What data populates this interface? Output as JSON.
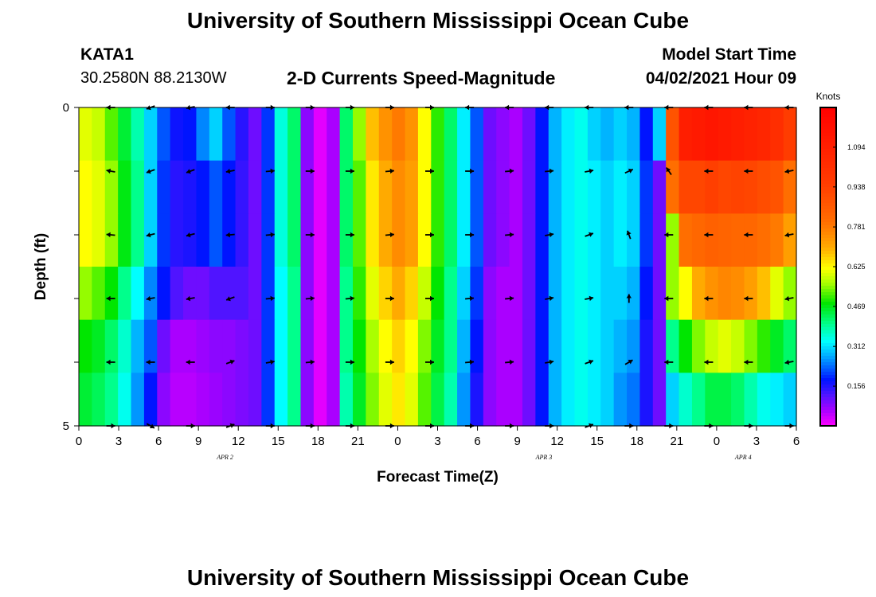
{
  "header": {
    "title": "University of Southern Mississippi Ocean Cube",
    "station": "KATA1",
    "coordinates": "30.2580N  88.2130W",
    "subtitle": "2-D Currents Speed-Magnitude",
    "model_label": "Model Start Time",
    "model_time": "04/02/2021 Hour 09"
  },
  "footer": {
    "title": "University of Southern Mississippi Ocean Cube"
  },
  "colors": {
    "background": "#ffffff",
    "arrow": "#000000",
    "frame": "#000000"
  },
  "chart_data": {
    "type": "heatmap",
    "title": "2-D Currents Speed-Magnitude",
    "xlabel": "Forecast Time(Z)",
    "ylabel": "Depth (ft)",
    "ylim": [
      0,
      5
    ],
    "y_tick_labels": [
      "0",
      "5"
    ],
    "x_tick_labels": [
      "0",
      "3",
      "6",
      "9",
      "12",
      "15",
      "18",
      "21",
      "0",
      "3",
      "6",
      "9",
      "12",
      "15",
      "18",
      "21",
      "0",
      "3",
      "6"
    ],
    "date_labels": [
      {
        "label": "APR 2",
        "hour": 11
      },
      {
        "label": "APR 3",
        "hour": 35
      },
      {
        "label": "APR 4",
        "hour": 50
      }
    ],
    "x_range_hours": [
      0,
      54
    ],
    "colorbar": {
      "unit": "Knots",
      "min": 0,
      "max": 1.25,
      "tick_values": [
        1.094,
        0.938,
        0.781,
        0.625,
        0.469,
        0.312,
        0.156
      ],
      "tick_labels": [
        "1.094",
        "0.938",
        "0.781",
        "0.625",
        "0.469",
        "0.312",
        "0.156"
      ]
    },
    "hours": [
      0,
      1,
      2,
      3,
      4,
      5,
      6,
      7,
      8,
      9,
      10,
      11,
      12,
      13,
      14,
      15,
      16,
      17,
      18,
      19,
      20,
      21,
      22,
      23,
      24,
      25,
      26,
      27,
      28,
      29,
      30,
      31,
      32,
      33,
      34,
      35,
      36,
      37,
      38,
      39,
      40,
      41,
      42,
      43,
      44,
      45,
      46,
      47,
      48,
      49,
      50,
      51,
      52,
      53,
      54
    ],
    "depth_layers": [
      {
        "depth": 0,
        "speeds": [
          0.6,
          0.58,
          0.52,
          0.45,
          0.38,
          0.3,
          0.22,
          0.17,
          0.18,
          0.25,
          0.3,
          0.22,
          0.15,
          0.1,
          0.2,
          0.35,
          0.42,
          0.08,
          0.02,
          0.06,
          0.42,
          0.55,
          0.68,
          0.74,
          0.78,
          0.74,
          0.62,
          0.5,
          0.42,
          0.32,
          0.22,
          0.1,
          0.08,
          0.06,
          0.1,
          0.18,
          0.28,
          0.32,
          0.34,
          0.3,
          0.28,
          0.3,
          0.28,
          0.18,
          0.3,
          0.88,
          1.1,
          1.12,
          1.14,
          1.12,
          1.1,
          1.08,
          1.06,
          1.02,
          0.95
        ]
      },
      {
        "depth": 1,
        "speeds": [
          0.62,
          0.6,
          0.55,
          0.47,
          0.4,
          0.3,
          0.2,
          0.15,
          0.16,
          0.18,
          0.22,
          0.18,
          0.14,
          0.1,
          0.2,
          0.35,
          0.42,
          0.08,
          0.02,
          0.06,
          0.42,
          0.52,
          0.64,
          0.7,
          0.75,
          0.72,
          0.62,
          0.5,
          0.42,
          0.32,
          0.22,
          0.1,
          0.08,
          0.06,
          0.1,
          0.18,
          0.28,
          0.32,
          0.34,
          0.32,
          0.3,
          0.32,
          0.3,
          0.2,
          0.1,
          0.8,
          0.92,
          0.92,
          0.94,
          0.92,
          0.93,
          0.92,
          0.9,
          0.88,
          0.8
        ]
      },
      {
        "depth": 2,
        "speeds": [
          0.62,
          0.6,
          0.55,
          0.47,
          0.4,
          0.3,
          0.2,
          0.15,
          0.16,
          0.18,
          0.22,
          0.18,
          0.14,
          0.1,
          0.2,
          0.35,
          0.42,
          0.08,
          0.02,
          0.06,
          0.42,
          0.52,
          0.64,
          0.7,
          0.75,
          0.72,
          0.62,
          0.5,
          0.42,
          0.32,
          0.22,
          0.1,
          0.08,
          0.06,
          0.1,
          0.18,
          0.28,
          0.32,
          0.34,
          0.32,
          0.3,
          0.32,
          0.3,
          0.2,
          0.1,
          0.55,
          0.8,
          0.82,
          0.84,
          0.83,
          0.82,
          0.82,
          0.8,
          0.78,
          0.72
        ]
      },
      {
        "depth": 3,
        "speeds": [
          0.55,
          0.52,
          0.48,
          0.4,
          0.33,
          0.25,
          0.18,
          0.12,
          0.1,
          0.1,
          0.12,
          0.12,
          0.12,
          0.1,
          0.2,
          0.33,
          0.4,
          0.08,
          0.02,
          0.06,
          0.4,
          0.5,
          0.6,
          0.66,
          0.7,
          0.66,
          0.58,
          0.48,
          0.4,
          0.3,
          0.2,
          0.08,
          0.06,
          0.06,
          0.1,
          0.18,
          0.28,
          0.32,
          0.34,
          0.32,
          0.3,
          0.3,
          0.28,
          0.18,
          0.1,
          0.55,
          0.62,
          0.7,
          0.74,
          0.76,
          0.75,
          0.72,
          0.68,
          0.6,
          0.55
        ]
      },
      {
        "depth": 4,
        "speeds": [
          0.48,
          0.46,
          0.42,
          0.36,
          0.28,
          0.22,
          0.1,
          0.06,
          0.06,
          0.07,
          0.08,
          0.08,
          0.09,
          0.1,
          0.2,
          0.33,
          0.4,
          0.08,
          0.02,
          0.06,
          0.4,
          0.48,
          0.56,
          0.62,
          0.66,
          0.62,
          0.54,
          0.46,
          0.4,
          0.28,
          0.18,
          0.08,
          0.06,
          0.06,
          0.1,
          0.18,
          0.28,
          0.32,
          0.34,
          0.32,
          0.3,
          0.28,
          0.26,
          0.16,
          0.1,
          0.4,
          0.48,
          0.54,
          0.58,
          0.6,
          0.58,
          0.54,
          0.5,
          0.46,
          0.42
        ]
      },
      {
        "depth": 5,
        "speeds": [
          0.45,
          0.43,
          0.4,
          0.34,
          0.26,
          0.18,
          0.08,
          0.05,
          0.05,
          0.06,
          0.07,
          0.08,
          0.09,
          0.1,
          0.2,
          0.33,
          0.4,
          0.08,
          0.02,
          0.06,
          0.38,
          0.46,
          0.54,
          0.6,
          0.64,
          0.6,
          0.52,
          0.44,
          0.38,
          0.26,
          0.16,
          0.08,
          0.06,
          0.06,
          0.1,
          0.18,
          0.28,
          0.32,
          0.34,
          0.32,
          0.3,
          0.26,
          0.24,
          0.16,
          0.1,
          0.3,
          0.36,
          0.4,
          0.44,
          0.44,
          0.42,
          0.38,
          0.34,
          0.32,
          0.3
        ]
      }
    ],
    "arrows": {
      "hours": [
        3,
        6,
        9,
        12,
        15,
        18,
        21,
        24,
        27,
        30,
        33,
        36,
        39,
        42,
        45,
        48,
        51,
        54
      ],
      "rows": [
        {
          "depth": 0,
          "directions_deg": [
            180,
            200,
            190,
            180,
            0,
            0,
            0,
            0,
            0,
            180,
            180,
            180,
            180,
            180,
            180,
            180,
            180,
            180
          ]
        },
        {
          "depth": 1,
          "directions_deg": [
            170,
            200,
            200,
            190,
            5,
            0,
            0,
            5,
            0,
            0,
            5,
            5,
            10,
            25,
            125,
            180,
            180,
            190
          ]
        },
        {
          "depth": 2,
          "directions_deg": [
            175,
            195,
            195,
            185,
            5,
            0,
            0,
            5,
            0,
            0,
            5,
            10,
            20,
            110,
            180,
            180,
            180,
            190
          ]
        },
        {
          "depth": 3,
          "directions_deg": [
            180,
            190,
            190,
            200,
            5,
            5,
            5,
            0,
            0,
            5,
            5,
            10,
            10,
            90,
            180,
            180,
            180,
            190
          ]
        },
        {
          "depth": 4,
          "directions_deg": [
            180,
            180,
            180,
            20,
            10,
            5,
            0,
            0,
            0,
            5,
            5,
            10,
            20,
            30,
            180,
            180,
            180,
            190
          ]
        },
        {
          "depth": 5,
          "directions_deg": [
            0,
            330,
            0,
            20,
            0,
            0,
            0,
            0,
            0,
            0,
            0,
            0,
            20,
            0,
            0,
            0,
            0,
            0
          ]
        }
      ]
    }
  }
}
